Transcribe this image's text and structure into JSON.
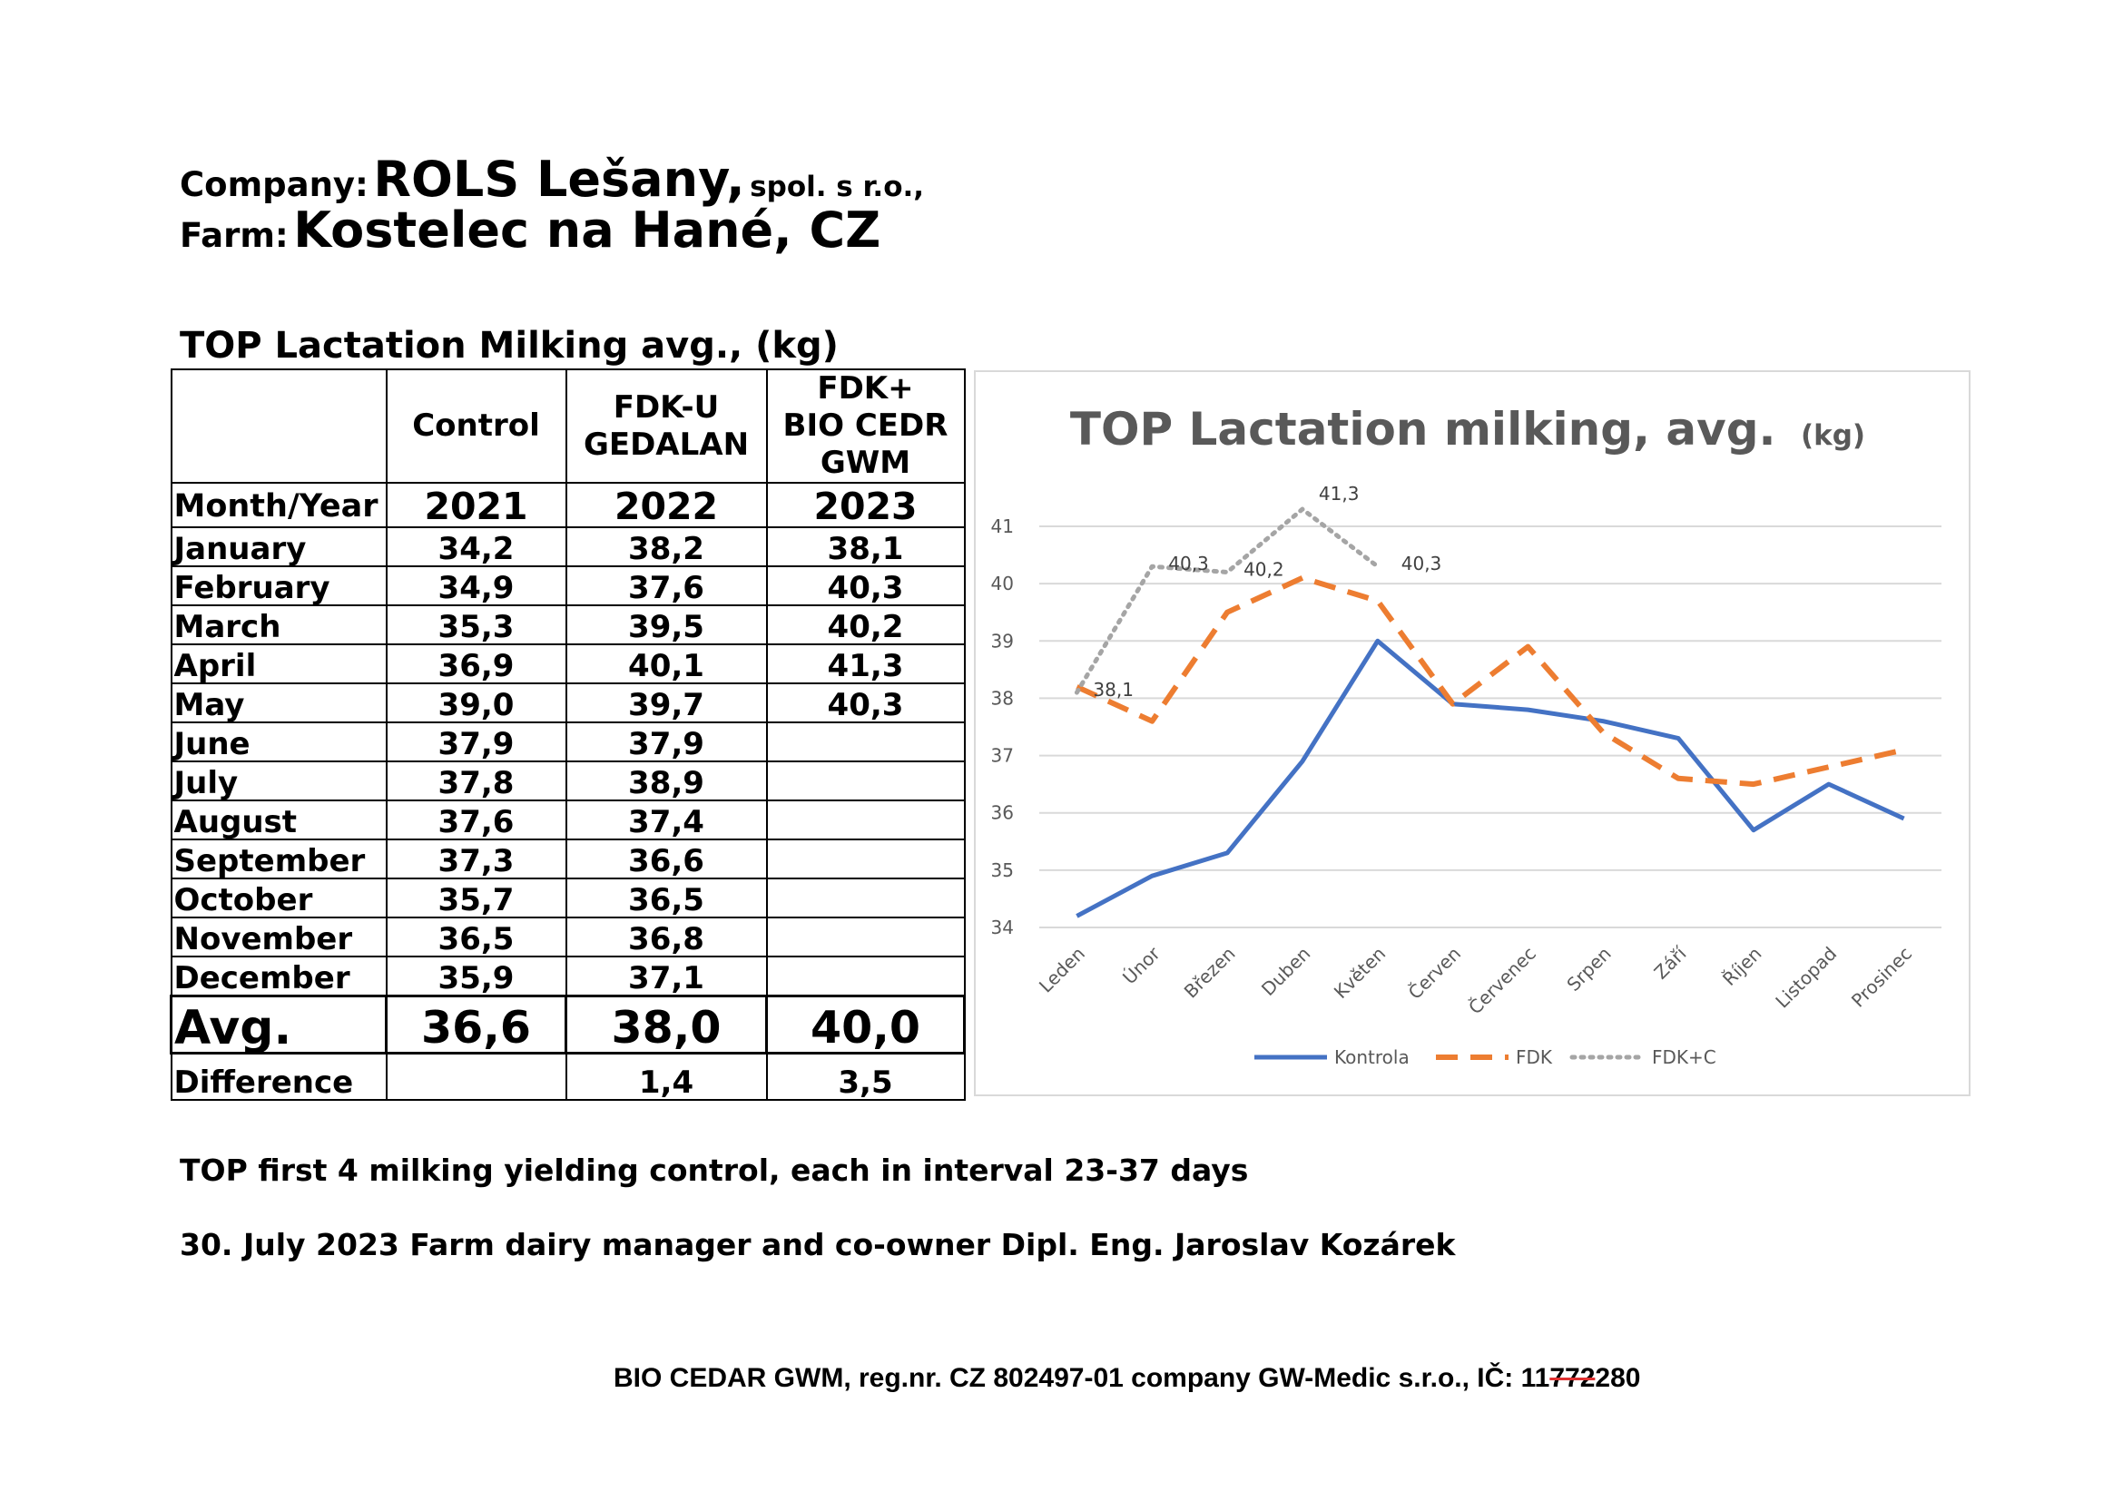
{
  "header": {
    "company_label": "Company:",
    "company_name": "ROLS Lešany,",
    "company_suffix": "spol. s r.o.,",
    "farm_label": "Farm:",
    "farm_name": "Kostelec na Hané, CZ"
  },
  "table": {
    "title": "TOP Lactation Milking avg., (kg)",
    "head": {
      "control": "Control",
      "fdku_line1": "FDK-U",
      "fdku_line2": "GEDALAN",
      "fdkbio_line1": "FDK+",
      "fdkbio_line2": "BIO CEDR",
      "fdkbio_line3": "GWM"
    },
    "years_row": {
      "label": "Month/Year",
      "c1": "2021",
      "c2": "2022",
      "c3": "2023"
    },
    "rows": [
      {
        "month": "January",
        "c1": "34,2",
        "c2": "38,2",
        "c3": "38,1"
      },
      {
        "month": "February",
        "c1": "34,9",
        "c2": "37,6",
        "c3": "40,3"
      },
      {
        "month": "March",
        "c1": "35,3",
        "c2": "39,5",
        "c3": "40,2"
      },
      {
        "month": "April",
        "c1": "36,9",
        "c2": "40,1",
        "c3": "41,3"
      },
      {
        "month": "May",
        "c1": "39,0",
        "c2": "39,7",
        "c3": "40,3"
      },
      {
        "month": "June",
        "c1": "37,9",
        "c2": "37,9",
        "c3": ""
      },
      {
        "month": "July",
        "c1": "37,8",
        "c2": "38,9",
        "c3": ""
      },
      {
        "month": "August",
        "c1": "37,6",
        "c2": "37,4",
        "c3": ""
      },
      {
        "month": "September",
        "c1": "37,3",
        "c2": "36,6",
        "c3": ""
      },
      {
        "month": "October",
        "c1": "35,7",
        "c2": "36,5",
        "c3": ""
      },
      {
        "month": "November",
        "c1": "36,5",
        "c2": "36,8",
        "c3": ""
      },
      {
        "month": "December",
        "c1": "35,9",
        "c2": "37,1",
        "c3": ""
      }
    ],
    "avg": {
      "label": "Avg.",
      "c1": "36,6",
      "c2": "38,0",
      "c3": "40,0"
    },
    "diff": {
      "label": "Difference",
      "c1": "",
      "c2": "1,4",
      "c3": "3,5"
    }
  },
  "chart_data": {
    "type": "line",
    "title": "TOP Lactation milking, avg.",
    "title_unit": "(kg)",
    "xlabel": "",
    "ylabel": "",
    "categories": [
      "Leden",
      "Únor",
      "Březen",
      "Duben",
      "Květen",
      "Červen",
      "Červenec",
      "Srpen",
      "Září",
      "Říjen",
      "Listopad",
      "Prosinec"
    ],
    "ylim": [
      34,
      41
    ],
    "yticks": [
      34,
      35,
      36,
      37,
      38,
      39,
      40,
      41
    ],
    "grid": true,
    "legend_position": "bottom",
    "series": [
      {
        "name": "Kontrola",
        "color": "#4472c4",
        "dash": "solid",
        "values": [
          34.2,
          34.9,
          35.3,
          36.9,
          39.0,
          37.9,
          37.8,
          37.6,
          37.3,
          35.7,
          36.5,
          35.9
        ],
        "labels": []
      },
      {
        "name": "FDK",
        "color": "#ed7d31",
        "dash": "dashed",
        "values": [
          38.2,
          37.6,
          39.5,
          40.1,
          39.7,
          37.9,
          38.9,
          37.4,
          36.6,
          36.5,
          36.8,
          37.1
        ],
        "labels": []
      },
      {
        "name": "FDK+C",
        "color": "#a5a5a5",
        "dash": "dotted",
        "values": [
          38.1,
          40.3,
          40.2,
          41.3,
          40.3,
          null,
          null,
          null,
          null,
          null,
          null,
          null
        ],
        "labels": [
          "38,1",
          "40,3",
          "40,2",
          "41,3",
          "40,3"
        ]
      }
    ]
  },
  "notes": {
    "line1": "TOP first 4 milking yielding control, each in interval 23-37 days",
    "line2": "30. July 2023 Farm dairy manager and co-owner Dipl. Eng. Jaroslav Kozárek"
  },
  "footer": {
    "pre": "BIO CEDAR GWM, reg.nr. CZ 802497-01 company GW-Medic s.r.o., IČ: 11",
    "struck": "772",
    "post": "280"
  }
}
